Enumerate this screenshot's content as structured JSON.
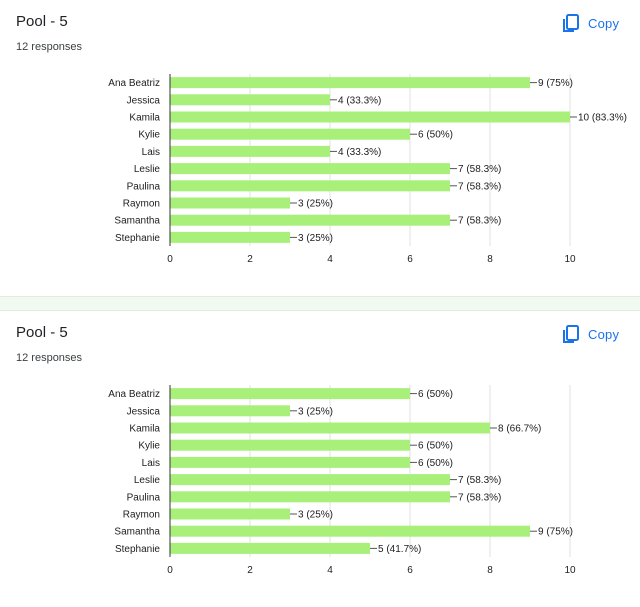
{
  "ui": {
    "copy_icon": "copy-icon",
    "accent_color": "#1a73e8",
    "bar_color": "#a8f07a"
  },
  "cards": [
    {
      "title": "Pool - 5",
      "responses": "12 responses",
      "copy_label": "Copy"
    },
    {
      "title": "Pool - 5",
      "responses": "12 responses",
      "copy_label": "Copy"
    }
  ],
  "chart_data": [
    {
      "type": "bar",
      "orientation": "horizontal",
      "categories": [
        "Ana Beatriz",
        "Jessica",
        "Kamila",
        "Kylie",
        "Lais",
        "Leslie",
        "Paulina",
        "Raymon",
        "Samantha",
        "Stephanie"
      ],
      "values": [
        9,
        4,
        10,
        6,
        4,
        7,
        7,
        3,
        7,
        3
      ],
      "data_labels": [
        "9 (75%)",
        "4 (33.3%)",
        "10 (83.3%)",
        "6 (50%)",
        "4 (33.3%)",
        "7 (58.3%)",
        "7 (58.3%)",
        "3 (25%)",
        "7 (58.3%)",
        "3 (25%)"
      ],
      "xlim": [
        0,
        10
      ],
      "xticks": [
        "0",
        "2",
        "4",
        "6",
        "8",
        "10"
      ],
      "grid": true
    },
    {
      "type": "bar",
      "orientation": "horizontal",
      "categories": [
        "Ana Beatriz",
        "Jessica",
        "Kamila",
        "Kylie",
        "Lais",
        "Leslie",
        "Paulina",
        "Raymon",
        "Samantha",
        "Stephanie"
      ],
      "values": [
        6,
        3,
        8,
        6,
        6,
        7,
        7,
        3,
        9,
        5
      ],
      "data_labels": [
        "6 (50%)",
        "3 (25%)",
        "8 (66.7%)",
        "6 (50%)",
        "6 (50%)",
        "7 (58.3%)",
        "7 (58.3%)",
        "3 (25%)",
        "9 (75%)",
        "5 (41.7%)"
      ],
      "xlim": [
        0,
        10
      ],
      "xticks": [
        "0",
        "2",
        "4",
        "6",
        "8",
        "10"
      ],
      "grid": true
    }
  ]
}
